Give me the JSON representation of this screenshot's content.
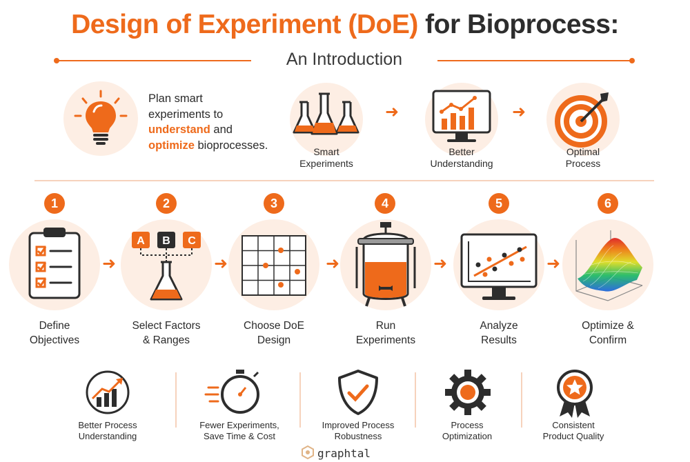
{
  "header": {
    "title_orange": "Design of Experiment (DoE)",
    "title_dark": "for Bioprocess:",
    "subtitle": "An Introduction"
  },
  "intro": {
    "line1": "Plan smart",
    "line2": "experiments to",
    "highlight1": "understand",
    "and_text": " and",
    "highlight2": "optimize",
    "tail": " bioprocesses."
  },
  "flow": [
    {
      "line1": "Smart",
      "line2": "Experiments",
      "icon": "flasks-icon"
    },
    {
      "line1": "Better",
      "line2": "Understanding",
      "icon": "monitor-chart-icon"
    },
    {
      "line1": "Optimal",
      "line2": "Process",
      "icon": "target-icon"
    }
  ],
  "steps": [
    {
      "number": "1",
      "line1": "Define",
      "line2": "Objectives",
      "icon": "clipboard-checklist-icon"
    },
    {
      "number": "2",
      "line1": "Select Factors",
      "line2": "& Ranges",
      "icon": "flask-factors-icon",
      "factors": [
        "A",
        "B",
        "C"
      ]
    },
    {
      "number": "3",
      "line1": "Choose DoE",
      "line2": "Design",
      "icon": "design-grid-icon"
    },
    {
      "number": "4",
      "line1": "Run",
      "line2": "Experiments",
      "icon": "bioreactor-icon"
    },
    {
      "number": "5",
      "line1": "Analyze",
      "line2": "Results",
      "icon": "monitor-scatter-icon"
    },
    {
      "number": "6",
      "line1": "Optimize &",
      "line2": "Confirm",
      "icon": "response-surface-icon"
    }
  ],
  "benefits": [
    {
      "line1": "Better Process",
      "line2": "Understanding",
      "icon": "growth-chart-icon"
    },
    {
      "line1": "Fewer Experiments,",
      "line2": "Save Time & Cost",
      "icon": "stopwatch-icon"
    },
    {
      "line1": "Improved Process",
      "line2": "Robustness",
      "icon": "shield-check-icon"
    },
    {
      "line1": "Process",
      "line2": "Optimization",
      "icon": "gear-icon"
    },
    {
      "line1": "Consistent",
      "line2": "Product Quality",
      "icon": "quality-badge-icon"
    }
  ],
  "footer": {
    "brand": "graphtal",
    "icon": "graphtal-logo-icon"
  },
  "colors": {
    "accent": "#ee6a1b",
    "dark": "#2d2d2d",
    "soft": "#fdeee4"
  }
}
